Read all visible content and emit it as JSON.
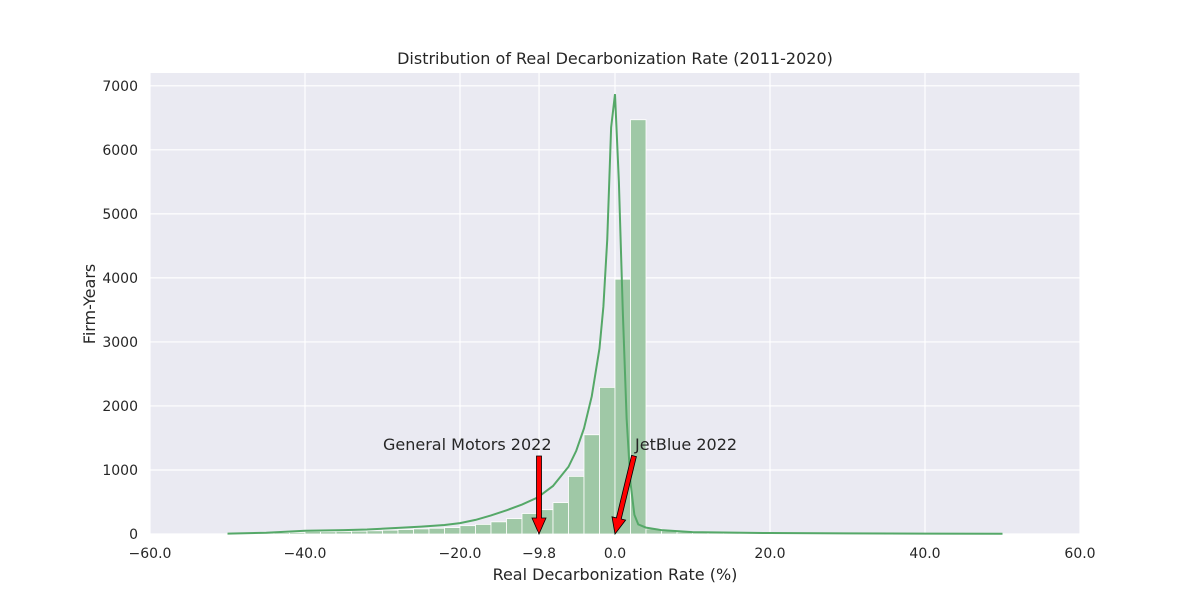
{
  "chart_data": {
    "type": "bar",
    "title": "Distribution of Real Decarbonization Rate (2011-2020)",
    "xlabel": "Real Decarbonization Rate (%)",
    "ylabel": "Firm-Years",
    "xlim": [
      -60,
      60
    ],
    "ylim": [
      0,
      7200
    ],
    "xticks": [
      -60,
      -40,
      -20,
      -9.8,
      0,
      20,
      40,
      60
    ],
    "xtick_labels": [
      "-60.0",
      "-40.0",
      "-20.0",
      "-9.8",
      "0.0",
      "20.0",
      "40.0",
      "60.0"
    ],
    "yticks": [
      0,
      1000,
      2000,
      3000,
      4000,
      5000,
      6000,
      7000
    ],
    "ytick_labels": [
      "0",
      "1000",
      "2000",
      "3000",
      "4000",
      "5000",
      "6000",
      "7000"
    ],
    "grid": true,
    "background_color": "#eaeaf2",
    "bar_color": "#9fc8a6",
    "kde_color": "#55a868",
    "arrow_color": "#ff0000",
    "histogram": {
      "bin_edges": [
        -50,
        -48,
        -46,
        -44,
        -42,
        -40,
        -38,
        -36,
        -34,
        -32,
        -30,
        -28,
        -26,
        -24,
        -22,
        -20,
        -18,
        -16,
        -14,
        -12,
        -10,
        -8,
        -6,
        -4,
        -2,
        0,
        2,
        4,
        6,
        8,
        10,
        12,
        14,
        16,
        18,
        20,
        22,
        24,
        26,
        28,
        30,
        32,
        34,
        36,
        38,
        40,
        42,
        44,
        46,
        48,
        50
      ],
      "counts": [
        15,
        18,
        20,
        22,
        25,
        40,
        35,
        40,
        45,
        50,
        60,
        70,
        80,
        90,
        100,
        130,
        150,
        190,
        240,
        320,
        380,
        490,
        900,
        1550,
        2290,
        3980,
        6470,
        80,
        50,
        30,
        25,
        20,
        15,
        12,
        10,
        8,
        7,
        6,
        5,
        5,
        4,
        4,
        3,
        3,
        3,
        2,
        2,
        2,
        2,
        2
      ]
    },
    "kde": {
      "x": [
        -50,
        -45,
        -40,
        -35,
        -32,
        -28,
        -25,
        -22,
        -20,
        -18,
        -16,
        -14,
        -12,
        -10,
        -8,
        -6,
        -5,
        -4,
        -3,
        -2,
        -1.5,
        -1,
        -0.5,
        0,
        0.5,
        1,
        1.5,
        2,
        2.5,
        3,
        4,
        6,
        10,
        20,
        30,
        40,
        50
      ],
      "y": [
        5,
        20,
        50,
        60,
        70,
        95,
        115,
        140,
        170,
        220,
        290,
        370,
        460,
        570,
        750,
        1050,
        1300,
        1650,
        2150,
        2900,
        3550,
        4600,
        6350,
        6870,
        5500,
        3500,
        1800,
        800,
        300,
        150,
        100,
        60,
        30,
        15,
        10,
        5,
        3
      ]
    },
    "annotations": [
      {
        "text": "General Motors 2022",
        "x": -9.8,
        "y": 0
      },
      {
        "text": "JetBlue 2022",
        "x": 0.0,
        "y": 0
      }
    ]
  }
}
